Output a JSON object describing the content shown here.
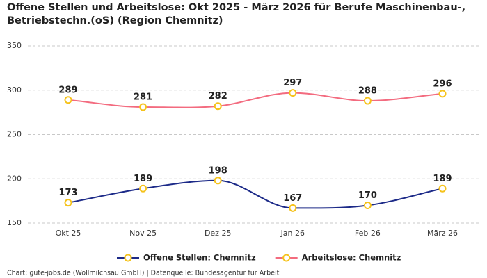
{
  "chart_data": {
    "type": "line",
    "title": "Offene Stellen und Arbeitslose: Okt 2025 - März 2026 für Berufe Maschinenbau-,",
    "subtitle": "Betriebstechn.(oS) (Region Chemnitz)",
    "categories": [
      "Okt 25",
      "Nov 25",
      "Dez 25",
      "Jan 26",
      "Feb 26",
      "März 26"
    ],
    "series": [
      {
        "name": "Offene Stellen: Chemnitz",
        "color": "#1c2a88",
        "values": [
          173,
          189,
          198,
          167,
          170,
          189
        ]
      },
      {
        "name": "Arbeitslose: Chemnitz",
        "color": "#f36b7f",
        "values": [
          289,
          281,
          282,
          297,
          288,
          296
        ]
      }
    ],
    "marker_color": "#f5c21b",
    "ylim": [
      150,
      350
    ],
    "yticks": [
      150,
      200,
      250,
      300,
      350
    ],
    "grid": true,
    "legend": "bottom",
    "footer": "Chart: gute-jobs.de (Wollmilchsau GmbH) | Datenquelle: Bundesagentur für Arbeit"
  }
}
